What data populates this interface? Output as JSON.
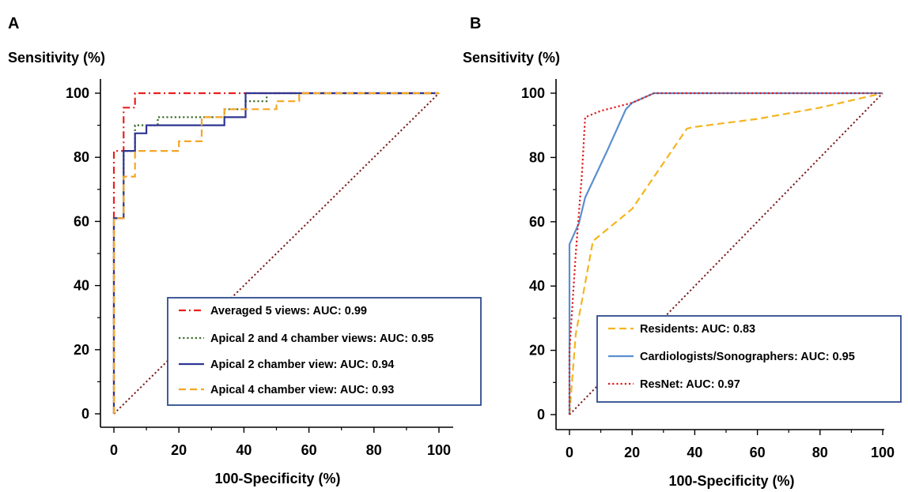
{
  "chart_data": [
    {
      "type": "line",
      "panel_label": "A",
      "title": "",
      "xlabel": "100-Specificity (%)",
      "ylabel": "Sensitivity (%)",
      "xlim": [
        0,
        100
      ],
      "ylim": [
        0,
        100
      ],
      "xticks": [
        0,
        20,
        40,
        60,
        80,
        100
      ],
      "yticks": [
        0,
        20,
        40,
        60,
        80,
        100
      ],
      "legend_position": "bottom-right",
      "series": [
        {
          "name": "Averaged 5 views: AUC: 0.99",
          "color": "#e8201f",
          "dash": "dash-dot",
          "x": [
            0,
            0,
            3,
            3,
            6.5,
            6.5,
            100
          ],
          "y": [
            0,
            82,
            82,
            95.5,
            95.5,
            100,
            100
          ]
        },
        {
          "name": "Apical 2 and 4 chamber views: AUC: 0.95",
          "color": "#3d6b2a",
          "dash": "dotted",
          "x": [
            0,
            0,
            3,
            3,
            6.5,
            6.5,
            13.5,
            13.5,
            27,
            27,
            34,
            34,
            40.5,
            40.5,
            47,
            47,
            100
          ],
          "y": [
            0,
            61,
            61,
            82,
            82,
            90,
            90,
            92.5,
            92.5,
            92.5,
            92.5,
            95,
            95,
            97.5,
            97.5,
            100,
            100
          ]
        },
        {
          "name": "Apical 2 chamber view: AUC: 0.94",
          "color": "#2e3592",
          "dash": "solid",
          "x": [
            0,
            0,
            3,
            3,
            6.5,
            6.5,
            8,
            8,
            10,
            10,
            34,
            34,
            40.5,
            40.5,
            100
          ],
          "y": [
            0,
            61,
            61,
            82,
            82,
            87.5,
            87.5,
            87.5,
            87.5,
            90,
            90,
            92.5,
            92.5,
            100,
            100
          ]
        },
        {
          "name": "Apical 4 chamber view: AUC: 0.93",
          "color": "#f5a623",
          "dash": "dashed",
          "x": [
            0,
            0,
            3,
            3,
            6.5,
            6.5,
            20,
            20,
            27,
            27,
            34,
            34,
            50,
            50,
            57,
            57,
            100
          ],
          "y": [
            0,
            61,
            61,
            74,
            74,
            82,
            82,
            85,
            85,
            92.5,
            92.5,
            95,
            95,
            97.5,
            97.5,
            100,
            100
          ]
        },
        {
          "name": "",
          "color": "#7a1c1c",
          "dash": "dotted",
          "x": [
            0,
            100
          ],
          "y": [
            0,
            100
          ]
        }
      ]
    },
    {
      "type": "line",
      "panel_label": "B",
      "title": "",
      "xlabel": "100-Specificity (%)",
      "ylabel": "Sensitivity (%)",
      "xlim": [
        0,
        100
      ],
      "ylim": [
        0,
        100
      ],
      "xticks": [
        0,
        20,
        40,
        60,
        80,
        100
      ],
      "yticks": [
        0,
        20,
        40,
        60,
        80,
        100
      ],
      "legend_position": "bottom-right",
      "series": [
        {
          "name": "Residents: AUC: 0.83",
          "color": "#f5b41e",
          "dash": "dashed",
          "x": [
            0,
            2,
            7.5,
            20,
            37.5,
            40,
            60,
            80,
            100
          ],
          "y": [
            0,
            25,
            54,
            64,
            89,
            89.5,
            92,
            95.5,
            100
          ]
        },
        {
          "name": "Cardiologists/Sonographers: AUC: 0.95",
          "color": "#5b8fd0",
          "dash": "solid",
          "x": [
            0,
            0,
            3,
            5,
            12,
            18,
            20,
            27,
            100
          ],
          "y": [
            0,
            53,
            59.5,
            67.5,
            82,
            95,
            97,
            100,
            100
          ]
        },
        {
          "name": "ResNet: AUC: 0.97",
          "color": "#e01a1a",
          "dash": "dotted",
          "x": [
            0,
            0,
            2,
            4,
            5,
            10,
            20,
            27,
            100
          ],
          "y": [
            0,
            20,
            50,
            75,
            92.5,
            94.5,
            97,
            100,
            100
          ]
        },
        {
          "name": "",
          "color": "#7a1c1c",
          "dash": "dotted",
          "x": [
            0,
            100
          ],
          "y": [
            0,
            100
          ]
        }
      ]
    }
  ]
}
